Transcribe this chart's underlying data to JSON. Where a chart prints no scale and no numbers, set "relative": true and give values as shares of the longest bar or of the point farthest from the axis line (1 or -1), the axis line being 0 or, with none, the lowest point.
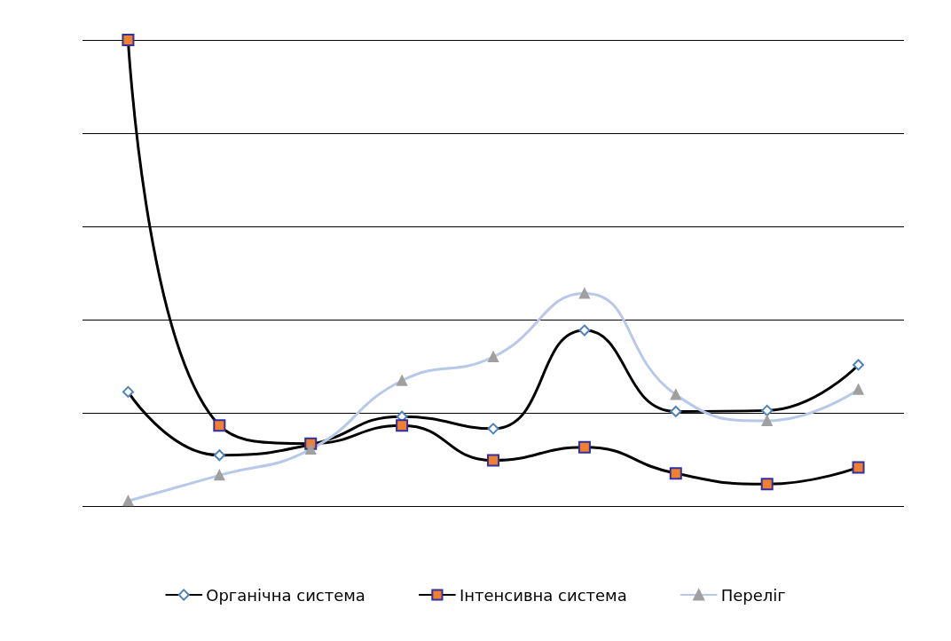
{
  "chart_data": {
    "type": "line",
    "relative": true,
    "grid": "y",
    "legend": "bottom",
    "categories": [
      null,
      null,
      null,
      null,
      null,
      null,
      null,
      null,
      null
    ],
    "series": [
      {
        "name": "Органічна система",
        "color": "#000000",
        "marker": "diamond",
        "values": [
          0.245,
          0.109,
          0.132,
          0.192,
          0.166,
          0.377,
          0.203,
          0.205,
          0.303
        ]
      },
      {
        "name": "Інтенсивна система",
        "color": "#000000",
        "marker": "square",
        "values": [
          1,
          0.173,
          0.134,
          0.173,
          0.098,
          0.126,
          0.07,
          0.047,
          0.083
        ]
      },
      {
        "name": "Переліг",
        "color": "#b8c8e8",
        "marker": "triangle",
        "values": [
          0.011,
          0.066,
          0.122,
          0.269,
          0.32,
          0.456,
          0.239,
          0.183,
          0.25
        ]
      }
    ]
  }
}
